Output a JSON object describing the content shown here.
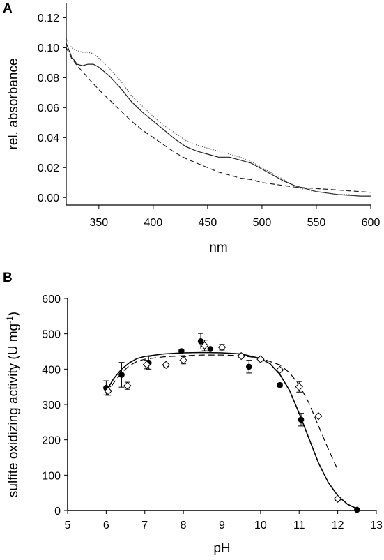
{
  "chart_data": [
    {
      "panel": "A",
      "type": "line",
      "xlabel": "nm",
      "ylabel": "rel. absorbance",
      "xlim": [
        320,
        600
      ],
      "ylim": [
        -0.005,
        0.13
      ],
      "x_ticks": [
        "350",
        "400",
        "450",
        "500",
        "550",
        "600"
      ],
      "y_ticks": [
        "0.00",
        "0.02",
        "0.04",
        "0.06",
        "0.08",
        "0.10",
        "0.12"
      ],
      "grid": false,
      "series": [
        {
          "style": "solid",
          "x": [
            320,
            325,
            330,
            335,
            340,
            345,
            350,
            360,
            370,
            380,
            390,
            400,
            410,
            420,
            430,
            440,
            450,
            460,
            470,
            480,
            490,
            500,
            510,
            520,
            530,
            540,
            550,
            560,
            570,
            580,
            590,
            600
          ],
          "values": [
            0.103,
            0.094,
            0.089,
            0.088,
            0.089,
            0.089,
            0.087,
            0.081,
            0.073,
            0.064,
            0.057,
            0.051,
            0.045,
            0.039,
            0.034,
            0.031,
            0.029,
            0.027,
            0.027,
            0.025,
            0.023,
            0.019,
            0.015,
            0.011,
            0.008,
            0.006,
            0.004,
            0.003,
            0.002,
            0.0015,
            0.001,
            0.001
          ]
        },
        {
          "style": "dotted",
          "x": [
            320,
            325,
            330,
            335,
            340,
            345,
            350,
            360,
            370,
            380,
            390,
            400,
            410,
            420,
            430,
            440,
            450,
            460,
            470,
            480,
            490,
            500,
            510,
            520,
            530,
            540,
            550,
            560,
            570,
            580,
            590,
            600
          ],
          "values": [
            0.106,
            0.1,
            0.098,
            0.097,
            0.097,
            0.096,
            0.093,
            0.086,
            0.078,
            0.068,
            0.061,
            0.054,
            0.048,
            0.043,
            0.038,
            0.035,
            0.033,
            0.031,
            0.029,
            0.027,
            0.024,
            0.02,
            0.016,
            0.012,
            0.008,
            0.005,
            0.004,
            0.003,
            0.002,
            0.002,
            0.001,
            0.001
          ]
        },
        {
          "style": "dashed",
          "x": [
            320,
            325,
            330,
            340,
            350,
            360,
            370,
            380,
            390,
            400,
            410,
            420,
            430,
            440,
            450,
            460,
            470,
            480,
            490,
            500,
            510,
            520,
            530,
            540,
            550,
            560,
            570,
            580,
            590,
            600
          ],
          "values": [
            0.1,
            0.093,
            0.088,
            0.08,
            0.072,
            0.065,
            0.058,
            0.051,
            0.045,
            0.04,
            0.035,
            0.03,
            0.026,
            0.023,
            0.02,
            0.017,
            0.015,
            0.013,
            0.012,
            0.01,
            0.009,
            0.008,
            0.007,
            0.0065,
            0.006,
            0.0055,
            0.005,
            0.0045,
            0.004,
            0.0035
          ]
        }
      ]
    },
    {
      "panel": "B",
      "type": "scatter",
      "xlabel": "pH",
      "ylabel": "sulfite oxidizing activity (U mg",
      "ylabel_superscript": "-1",
      "ylabel_close": ")",
      "xlim": [
        5,
        13
      ],
      "ylim": [
        0,
        600
      ],
      "x_ticks": [
        "5",
        "6",
        "7",
        "8",
        "9",
        "10",
        "11",
        "12",
        "13"
      ],
      "y_ticks": [
        "0",
        "100",
        "200",
        "300",
        "400",
        "500",
        "600"
      ],
      "grid": false,
      "series": [
        {
          "marker": "filled-circle",
          "x": [
            6.0,
            6.4,
            7.1,
            7.95,
            8.45,
            8.7,
            9.7,
            10.5,
            11.05,
            12.5
          ],
          "values": [
            347,
            384,
            418,
            451,
            479,
            457,
            407,
            355,
            257,
            2
          ],
          "error": [
            20,
            35,
            18,
            5,
            22,
            5,
            18,
            5,
            18,
            0
          ]
        },
        {
          "marker": "open-diamond",
          "x": [
            6.05,
            6.55,
            7.05,
            7.55,
            8.0,
            8.55,
            9.0,
            9.5,
            10.0,
            10.5,
            11.0,
            11.5,
            12.0
          ],
          "values": [
            338,
            353,
            413,
            412,
            425,
            467,
            462,
            437,
            428,
            398,
            350,
            267,
            33
          ],
          "error": [
            12,
            10,
            12,
            5,
            10,
            15,
            8,
            5,
            5,
            5,
            15,
            5,
            5
          ]
        },
        {
          "style": "solid-fit",
          "x": [
            6.0,
            6.2,
            6.4,
            6.6,
            6.8,
            7.0,
            7.5,
            8.0,
            8.5,
            9.0,
            9.5,
            10.0,
            10.25,
            10.5,
            10.75,
            11.0,
            11.25,
            11.5,
            11.75,
            12.0,
            12.25,
            12.5
          ],
          "values": [
            338,
            374,
            400,
            418,
            430,
            436,
            443,
            446,
            447,
            446,
            443,
            430,
            415,
            385,
            340,
            275,
            205,
            135,
            80,
            42,
            18,
            5
          ]
        },
        {
          "style": "dashed-fit",
          "x": [
            6.0,
            6.2,
            6.4,
            6.6,
            6.8,
            7.0,
            7.5,
            8.0,
            8.5,
            9.0,
            9.5,
            10.0,
            10.5,
            10.75,
            11.0,
            11.25,
            11.5,
            11.75,
            12.0
          ],
          "values": [
            330,
            362,
            390,
            410,
            422,
            428,
            435,
            438,
            440,
            440,
            438,
            431,
            412,
            390,
            355,
            305,
            240,
            175,
            115
          ]
        }
      ]
    }
  ]
}
